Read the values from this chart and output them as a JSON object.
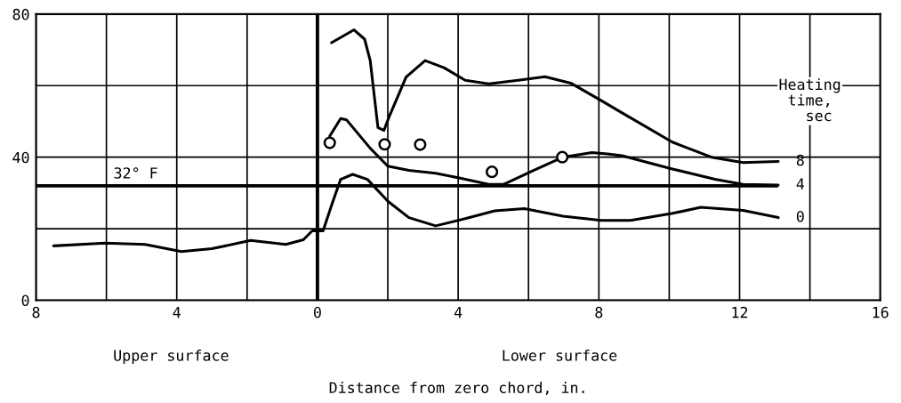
{
  "chart_data": {
    "type": "line",
    "xlabel": "Distance from zero chord, in.",
    "legend_title": "Heating\ntime,\n  sec",
    "xlim": [
      -8,
      16
    ],
    "ylim": [
      0,
      80
    ],
    "xticks": [
      {
        "value": -8,
        "label": "8"
      },
      {
        "value": -6,
        "label": null
      },
      {
        "value": -4,
        "label": "4"
      },
      {
        "value": -2,
        "label": null
      },
      0,
      {
        "value": 2,
        "label": null
      },
      4,
      {
        "value": 6,
        "label": null
      },
      8,
      {
        "value": 10,
        "label": null
      },
      12,
      {
        "value": 14,
        "label": null
      },
      16
    ],
    "yticks": [
      0,
      {
        "value": 20,
        "label": null
      },
      40,
      {
        "value": 60,
        "label": null
      },
      80
    ],
    "grid": true,
    "legend": false,
    "marker": "none",
    "line_style": "solid",
    "ref_lines": [
      {
        "axis": "y",
        "value": 32,
        "label": "32° F"
      },
      {
        "axis": "x",
        "value": 0,
        "label": null
      }
    ],
    "annotations": [
      "Upper surface",
      "Lower surface"
    ],
    "series": [
      {
        "name": "8",
        "color": "#000000",
        "x": [
          0.4,
          1.04,
          1.34,
          1.5,
          1.72,
          1.89,
          2.05,
          2.52,
          3.06,
          3.6,
          4.2,
          4.87,
          5.7,
          6.47,
          7.2,
          8.07,
          8.66,
          10.09,
          11.2,
          12.1,
          13.1
        ],
        "values": [
          72,
          75.6,
          73,
          67,
          48.3,
          47.5,
          51.6,
          62.4,
          67,
          65,
          61.5,
          60.5,
          61.5,
          62.5,
          60.7,
          55.8,
          52.4,
          44.2,
          40,
          38.5,
          38.8
        ]
      },
      {
        "name": "4",
        "color": "#000000",
        "x": [
          0.35,
          0.66,
          0.83,
          1.5,
          2.0,
          2.6,
          3.36,
          4.03,
          4.87,
          5.3,
          6.14,
          6.98,
          7.8,
          8.24,
          8.66,
          10.09,
          11.3,
          12.1,
          13.1
        ],
        "values": [
          45.9,
          50.8,
          50.4,
          42.5,
          37.5,
          36.3,
          35.5,
          34.2,
          32.4,
          32.4,
          36.3,
          40,
          41.3,
          40.9,
          40.4,
          36.7,
          33.8,
          32.4,
          32.2
        ]
      },
      {
        "name": "0",
        "color": "#000000",
        "x": [
          -7.5,
          -6.03,
          -4.9,
          -3.87,
          -3.0,
          -1.9,
          -0.9,
          -0.4,
          -0.15,
          0.16,
          0.41,
          0.66,
          1.0,
          1.42,
          2.01,
          2.6,
          3.36,
          4.2,
          5.04,
          5.88,
          6.98,
          8.07,
          8.9,
          10.1,
          10.9,
          12.1,
          13.1
        ],
        "values": [
          15.2,
          16,
          15.6,
          13.6,
          14.4,
          16.7,
          15.6,
          16.9,
          19.4,
          19.4,
          26.8,
          33.8,
          35.2,
          33.8,
          27.6,
          23.1,
          20.8,
          22.8,
          25,
          25.6,
          23.5,
          22.3,
          22.3,
          24.3,
          26,
          25.1,
          23.1
        ]
      },
      {
        "type": "scatter",
        "marker": "circle",
        "color": "#000000",
        "x": [
          0.35,
          1.91,
          2.92,
          4.96,
          6.96
        ],
        "values": [
          44,
          43.6,
          43.5,
          35.9,
          40
        ]
      }
    ]
  }
}
